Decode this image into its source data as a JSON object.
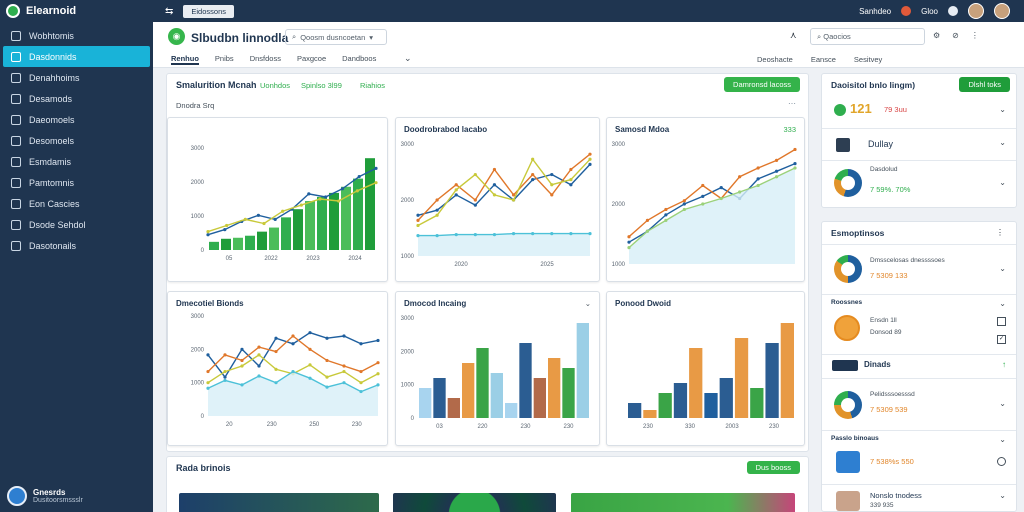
{
  "app": {
    "name": "Elearnoid"
  },
  "sidebar": {
    "items": [
      {
        "label": "Wobhtomis"
      },
      {
        "label": "Dasdonnids"
      },
      {
        "label": "Denahhoims"
      },
      {
        "label": "Desamods"
      },
      {
        "label": "Daeomoels"
      },
      {
        "label": "Desomoels"
      },
      {
        "label": "Esmdamis"
      },
      {
        "label": "Pamtomnis"
      },
      {
        "label": "Eon Cascies"
      },
      {
        "label": "Dsode Sehdol"
      },
      {
        "label": "Dasotonails"
      }
    ],
    "user": {
      "name": "Gnesrds",
      "sub": "Dusitoorsmssslr"
    }
  },
  "topbar": {
    "pill": "Eidossons",
    "user1": "Sanhdeo",
    "user2": "Gloo"
  },
  "header": {
    "title": "Slbudbn linnodla",
    "search": "Qoosm dusncoetan",
    "tabs": [
      "Renhuo",
      "Pnibs",
      "Dnsfdoss",
      "Paxgcoe",
      "Dandboos"
    ],
    "right_search": "Qaocios",
    "right_tabs": [
      "Deoshacte",
      "Eansce",
      "Sesitvey"
    ]
  },
  "main": {
    "title": "Smalurition Mcnah",
    "sub1": "Uonhdos",
    "sub2": "Spinlso 3l99",
    "sub3": "Riahios",
    "button": "Damronsd lacoss",
    "label": "Dnodra Srq"
  },
  "cards": [
    {
      "title": "",
      "value": "",
      "chart_data": {
        "type": "bar",
        "title": "",
        "xlabel": "",
        "ylabel": "",
        "y_ticks": [
          "3000",
          "2000",
          "1000",
          "0"
        ],
        "x_ticks": [
          "05",
          "2022",
          "2023",
          "2024"
        ],
        "values": [
          8,
          11,
          12,
          14,
          18,
          22,
          32,
          40,
          48,
          52,
          56,
          62,
          70,
          90
        ],
        "series": [
          {
            "values": [
              15,
              20,
              28,
              34,
              30,
              40,
              55,
              52,
              60,
              72,
              80
            ]
          },
          {
            "values": [
              18,
              24,
              30,
              26,
              38,
              44,
              50,
              48,
              58,
              66
            ]
          }
        ],
        "ylim": [
          0,
          100
        ]
      }
    },
    {
      "title": "Doodrobrabod lacabo",
      "value": "",
      "chart_data": {
        "type": "area",
        "title": "Doodrobrabod lacabo",
        "y_ticks": [
          "3000",
          "2000",
          "1000"
        ],
        "x_ticks": [
          "2020",
          "2025"
        ],
        "series": [
          {
            "name": "blue",
            "values": [
              40,
              45,
              60,
              50,
              70,
              55,
              75,
              80,
              70,
              90
            ]
          },
          {
            "name": "orange",
            "values": [
              35,
              55,
              70,
              55,
              85,
              60,
              80,
              60,
              85,
              100
            ]
          },
          {
            "name": "yellow",
            "values": [
              30,
              40,
              65,
              80,
              60,
              55,
              95,
              70,
              75,
              95
            ]
          },
          {
            "name": "cyan",
            "values": [
              20,
              20,
              21,
              21,
              21,
              22,
              22,
              22,
              22,
              22
            ]
          }
        ],
        "ylim": [
          0,
          110
        ]
      }
    },
    {
      "title": "Samosd Mdoa",
      "value": "333",
      "chart_data": {
        "type": "area",
        "title": "Samosd Mdoa",
        "y_ticks": [
          "3000",
          "2000",
          "1000"
        ],
        "x_ticks": [],
        "series": [
          {
            "name": "blue",
            "values": [
              20,
              30,
              45,
              55,
              62,
              70,
              60,
              78,
              85,
              92
            ]
          },
          {
            "name": "orange",
            "values": [
              25,
              40,
              50,
              58,
              72,
              60,
              80,
              88,
              95,
              105
            ]
          },
          {
            "name": "lightgreen",
            "values": [
              15,
              30,
              40,
              50,
              55,
              60,
              66,
              72,
              80,
              88
            ]
          }
        ],
        "ylim": [
          0,
          110
        ]
      }
    },
    {
      "title": "Dmecotiel Bionds",
      "value": "",
      "chart_data": {
        "type": "line",
        "title": "Dmecotiel Bionds",
        "y_ticks": [
          "3000",
          "2000",
          "1000",
          "0"
        ],
        "x_ticks": [
          "20",
          "230",
          "250",
          "230"
        ],
        "series": [
          {
            "name": "blue",
            "values": [
              55,
              35,
              60,
              45,
              70,
              65,
              75,
              70,
              72,
              65,
              68
            ]
          },
          {
            "name": "orange",
            "values": [
              40,
              55,
              50,
              62,
              58,
              72,
              60,
              50,
              45,
              40,
              48
            ]
          },
          {
            "name": "yellow",
            "values": [
              30,
              40,
              45,
              55,
              42,
              38,
              46,
              35,
              40,
              30,
              38
            ]
          },
          {
            "name": "cyan",
            "values": [
              25,
              32,
              28,
              36,
              30,
              40,
              34,
              26,
              30,
              22,
              28
            ]
          }
        ],
        "ylim": [
          0,
          90
        ]
      }
    },
    {
      "title": "Dmocod Incaing",
      "value": "",
      "chart_data": {
        "type": "bar",
        "title": "Dmocod Incaing",
        "y_ticks": [
          "3000",
          "2000",
          "1000",
          "0"
        ],
        "x_ticks": [
          "03",
          "220",
          "230",
          "230"
        ],
        "values": [
          30,
          40,
          20,
          55,
          70,
          45,
          15,
          75,
          40,
          60,
          50,
          95
        ],
        "ylim": [
          0,
          100
        ]
      }
    },
    {
      "title": "Ponood Dwoid",
      "value": "",
      "chart_data": {
        "type": "bar",
        "title": "Ponood Dwoid",
        "y_ticks": [],
        "x_ticks": [
          "230",
          "330",
          "2003",
          "230"
        ],
        "values": [
          15,
          8,
          25,
          35,
          70,
          25,
          40,
          80,
          30,
          75,
          95
        ],
        "ylim": [
          0,
          100
        ]
      }
    }
  ],
  "bottom": {
    "title": "Rada brinois",
    "button": "Dus booss"
  },
  "right": {
    "panel1": {
      "title": "Daoisitol bnlo lingm)",
      "button": "Dlshl toks",
      "stat1": {
        "value": "121",
        "extra": "79 3uu"
      },
      "stat2": {
        "label": "Dullay"
      },
      "stat3": {
        "label": "Dasdolud",
        "value": "7 59%. 70%"
      }
    },
    "panel2": {
      "title": "Esmoptinsos",
      "rows": [
        {
          "label": "Dmsscelosas dnessssoes",
          "value": "7 5309 133"
        },
        {
          "label": "Roossnes",
          "value": "Ensdn 1ll",
          "sub": "Donsod 89"
        },
        {
          "label": "Dinads",
          "value": ""
        },
        {
          "label": "Pelidsssoesssd",
          "value": "7 5309 539"
        },
        {
          "label": "Passlo binoaus",
          "value": "7 538%s 550"
        },
        {
          "label": "Nonslo tnodess",
          "value": "339 935"
        }
      ]
    }
  },
  "colors": {
    "sidebar": "#1f3550",
    "accent": "#19b3d8",
    "green": "#34b34a"
  }
}
